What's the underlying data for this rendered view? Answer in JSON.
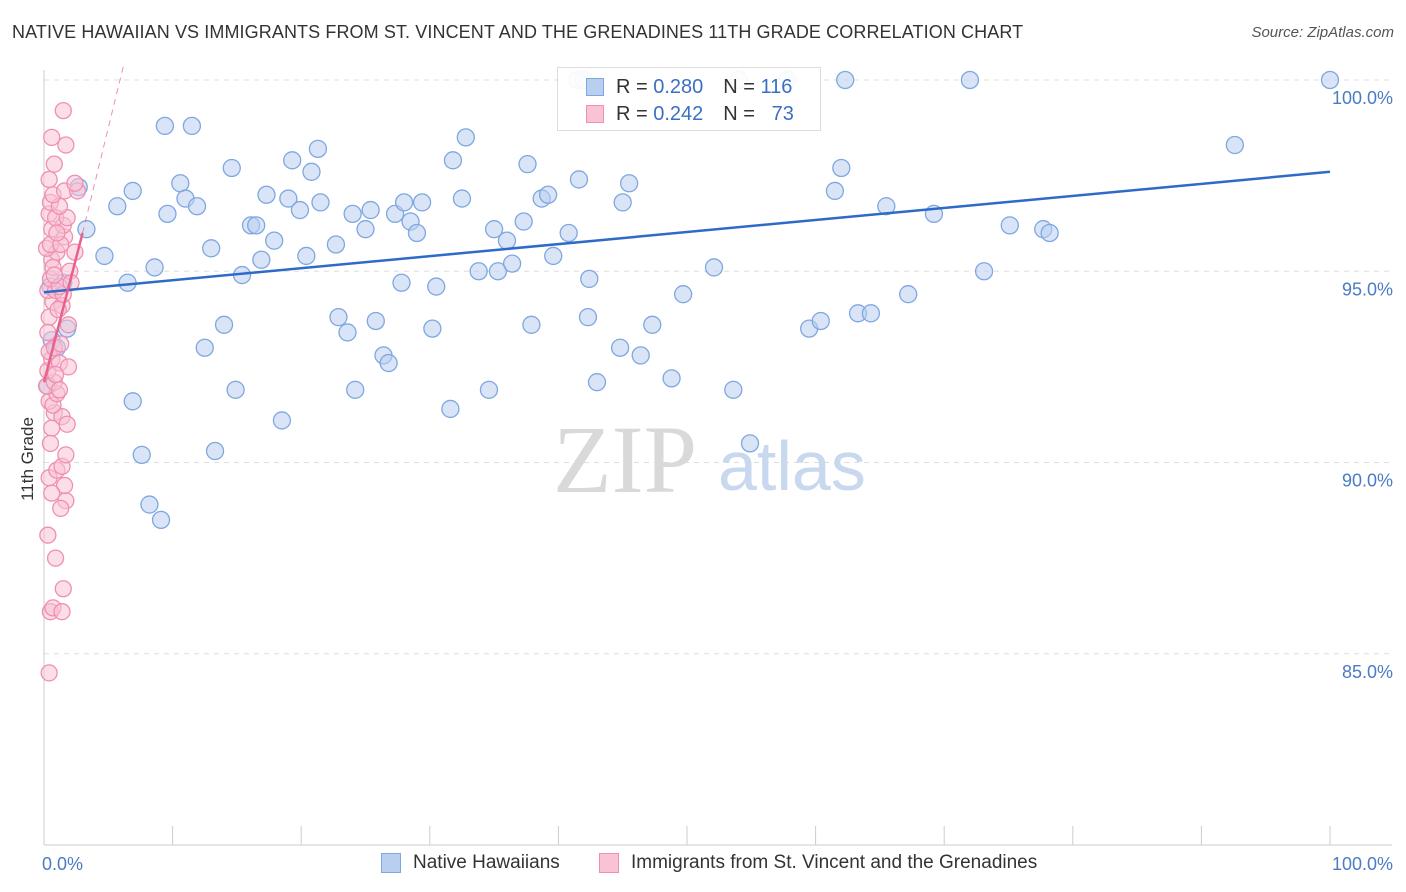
{
  "title": "NATIVE HAWAIIAN VS IMMIGRANTS FROM ST. VINCENT AND THE GRENADINES 11TH GRADE CORRELATION CHART",
  "source": "Source: ZipAtlas.com",
  "watermark": {
    "zip": "ZIP",
    "atlas": "atlas"
  },
  "legend": {
    "rows": [
      {
        "r_label": "R =",
        "r_value": "0.280",
        "n_label": "N =",
        "n_value": "116"
      },
      {
        "r_label": "R =",
        "r_value": "0.242",
        "n_label": "N =",
        "n_value": "73"
      }
    ]
  },
  "bottom_legend": [
    "Native Hawaiians",
    "Immigrants from St. Vincent and the Grenadines"
  ],
  "colors": {
    "blue": "#7fa7e0",
    "blue_fill": "#b9cff0",
    "blue_line": "#2e6bc9",
    "pink": "#f08fb0",
    "pink_fill": "#f7c3d5",
    "pink_line": "#e8608c",
    "grid": "#dddddd",
    "axis_text": "#4a7cc4"
  },
  "chart_data": {
    "type": "scatter",
    "title": "NATIVE HAWAIIAN VS IMMIGRANTS FROM ST. VINCENT AND THE GRENADINES 11TH GRADE CORRELATION CHART",
    "xlabel": "",
    "ylabel": "11th Grade",
    "xlim": [
      0,
      100
    ],
    "ylim": [
      80.5,
      100.6
    ],
    "x_tick_labels": [
      "0.0%",
      "100.0%"
    ],
    "y_ticks": [
      85,
      90,
      95,
      100
    ],
    "y_tick_labels": [
      "85.0%",
      "90.0%",
      "95.0%",
      "100.0%"
    ],
    "grid": true,
    "legend_position": "top-center",
    "series": [
      {
        "name": "Native Hawaiians",
        "color": "#7fa7e0",
        "R": 0.28,
        "N": 116,
        "trend": {
          "x": [
            0,
            100
          ],
          "y": [
            94.45,
            97.6
          ],
          "style": "solid"
        },
        "points": [
          [
            0.3,
            92.0
          ],
          [
            0.6,
            93.2
          ],
          [
            1.0,
            93.0
          ],
          [
            0.5,
            94.6
          ],
          [
            1.5,
            94.7
          ],
          [
            1.8,
            93.5
          ],
          [
            2.7,
            97.2
          ],
          [
            3.3,
            96.1
          ],
          [
            4.7,
            95.4
          ],
          [
            5.7,
            96.7
          ],
          [
            6.5,
            94.7
          ],
          [
            6.9,
            91.6
          ],
          [
            6.9,
            97.1
          ],
          [
            7.6,
            90.2
          ],
          [
            8.2,
            88.9
          ],
          [
            8.6,
            95.1
          ],
          [
            9.1,
            88.5
          ],
          [
            9.4,
            98.8
          ],
          [
            9.6,
            96.5
          ],
          [
            10.6,
            97.3
          ],
          [
            11.0,
            96.9
          ],
          [
            11.5,
            98.8
          ],
          [
            11.9,
            96.7
          ],
          [
            12.5,
            93.0
          ],
          [
            13.0,
            95.6
          ],
          [
            13.3,
            90.3
          ],
          [
            14.0,
            93.6
          ],
          [
            14.6,
            97.7
          ],
          [
            14.9,
            91.9
          ],
          [
            15.4,
            94.9
          ],
          [
            16.1,
            96.2
          ],
          [
            16.5,
            96.2
          ],
          [
            16.9,
            95.3
          ],
          [
            17.3,
            97.0
          ],
          [
            17.9,
            95.8
          ],
          [
            18.5,
            91.1
          ],
          [
            19.0,
            96.9
          ],
          [
            19.3,
            97.9
          ],
          [
            19.9,
            96.6
          ],
          [
            20.4,
            95.4
          ],
          [
            20.8,
            97.6
          ],
          [
            21.3,
            98.2
          ],
          [
            21.5,
            96.8
          ],
          [
            22.7,
            95.7
          ],
          [
            22.9,
            93.8
          ],
          [
            23.6,
            93.4
          ],
          [
            24.0,
            96.5
          ],
          [
            24.2,
            91.9
          ],
          [
            25.0,
            96.1
          ],
          [
            25.4,
            96.6
          ],
          [
            25.8,
            93.7
          ],
          [
            26.4,
            92.8
          ],
          [
            26.8,
            92.6
          ],
          [
            27.3,
            96.5
          ],
          [
            27.8,
            94.7
          ],
          [
            28.0,
            96.8
          ],
          [
            28.5,
            96.3
          ],
          [
            29.0,
            96.0
          ],
          [
            29.4,
            96.8
          ],
          [
            30.2,
            93.5
          ],
          [
            30.5,
            94.6
          ],
          [
            31.6,
            91.4
          ],
          [
            31.8,
            97.9
          ],
          [
            32.5,
            96.9
          ],
          [
            32.8,
            98.5
          ],
          [
            33.8,
            95.0
          ],
          [
            34.6,
            91.9
          ],
          [
            35.0,
            96.1
          ],
          [
            35.3,
            95.0
          ],
          [
            36.0,
            95.8
          ],
          [
            36.4,
            95.2
          ],
          [
            37.3,
            96.3
          ],
          [
            37.6,
            97.8
          ],
          [
            37.9,
            93.6
          ],
          [
            38.7,
            96.9
          ],
          [
            39.2,
            97.0
          ],
          [
            39.6,
            95.4
          ],
          [
            40.8,
            96.0
          ],
          [
            41.6,
            97.4
          ],
          [
            42.3,
            93.8
          ],
          [
            42.4,
            94.8
          ],
          [
            43.0,
            92.1
          ],
          [
            44.8,
            93.0
          ],
          [
            45.0,
            96.8
          ],
          [
            45.5,
            97.3
          ],
          [
            46.4,
            92.8
          ],
          [
            47.3,
            93.6
          ],
          [
            48.8,
            92.2
          ],
          [
            49.7,
            94.4
          ],
          [
            52.1,
            95.1
          ],
          [
            53.6,
            91.9
          ],
          [
            54.9,
            90.5
          ],
          [
            59.5,
            93.5
          ],
          [
            60.4,
            93.7
          ],
          [
            61.5,
            97.1
          ],
          [
            62.0,
            97.7
          ],
          [
            63.3,
            93.9
          ],
          [
            64.3,
            93.9
          ],
          [
            65.5,
            96.7
          ],
          [
            67.2,
            94.4
          ],
          [
            69.2,
            96.5
          ],
          [
            73.1,
            95.0
          ],
          [
            75.1,
            96.2
          ],
          [
            77.7,
            96.1
          ],
          [
            78.2,
            96.0
          ],
          [
            100.0,
            100.0
          ],
          [
            92.6,
            98.3
          ],
          [
            62.3,
            100.0
          ],
          [
            72.0,
            100.0
          ],
          [
            54.0,
            100.0
          ],
          [
            57.8,
            100.0
          ],
          [
            41.5,
            100.0
          ],
          [
            42.0,
            100.0
          ]
        ]
      },
      {
        "name": "Immigrants from St. Vincent and the Grenadines",
        "color": "#f08fb0",
        "R": 0.242,
        "N": 73,
        "trend": {
          "x": [
            0,
            3.0
          ],
          "y": [
            92.1,
            96.0
          ],
          "style": "solid",
          "extension": {
            "x": [
              3.0,
              6.2
            ],
            "y": [
              96.0,
              100.4
            ],
            "style": "dashed"
          }
        },
        "points": [
          [
            0.4,
            84.5
          ],
          [
            0.5,
            86.1
          ],
          [
            0.7,
            86.2
          ],
          [
            1.4,
            86.1
          ],
          [
            1.5,
            86.7
          ],
          [
            0.9,
            87.5
          ],
          [
            0.3,
            88.1
          ],
          [
            1.7,
            89.0
          ],
          [
            0.4,
            89.6
          ],
          [
            1.6,
            89.4
          ],
          [
            1.0,
            89.8
          ],
          [
            1.4,
            89.9
          ],
          [
            1.7,
            90.2
          ],
          [
            0.6,
            90.9
          ],
          [
            0.8,
            91.3
          ],
          [
            1.4,
            91.2
          ],
          [
            0.4,
            91.6
          ],
          [
            0.7,
            91.5
          ],
          [
            1.0,
            91.8
          ],
          [
            0.2,
            92.0
          ],
          [
            0.8,
            92.1
          ],
          [
            0.3,
            92.4
          ],
          [
            0.6,
            92.7
          ],
          [
            1.2,
            92.6
          ],
          [
            1.9,
            92.5
          ],
          [
            0.4,
            92.9
          ],
          [
            0.8,
            93.0
          ],
          [
            1.3,
            93.1
          ],
          [
            0.4,
            93.8
          ],
          [
            0.7,
            94.2
          ],
          [
            1.4,
            94.1
          ],
          [
            0.3,
            94.5
          ],
          [
            0.9,
            94.5
          ],
          [
            1.5,
            94.4
          ],
          [
            0.5,
            94.8
          ],
          [
            1.2,
            94.6
          ],
          [
            0.6,
            95.3
          ],
          [
            1.0,
            95.5
          ],
          [
            2.4,
            95.5
          ],
          [
            0.2,
            95.6
          ],
          [
            0.5,
            95.7
          ],
          [
            1.6,
            95.9
          ],
          [
            1.3,
            95.7
          ],
          [
            0.6,
            96.1
          ],
          [
            1.5,
            96.2
          ],
          [
            0.4,
            96.5
          ],
          [
            0.9,
            96.4
          ],
          [
            1.8,
            96.4
          ],
          [
            0.5,
            96.8
          ],
          [
            1.2,
            96.7
          ],
          [
            0.7,
            97.0
          ],
          [
            1.6,
            97.1
          ],
          [
            2.6,
            97.1
          ],
          [
            2.4,
            97.3
          ],
          [
            0.8,
            97.8
          ],
          [
            1.7,
            98.3
          ],
          [
            0.6,
            98.5
          ],
          [
            1.5,
            99.2
          ],
          [
            0.3,
            93.4
          ],
          [
            1.1,
            94.0
          ],
          [
            2.0,
            95.0
          ],
          [
            0.9,
            92.3
          ],
          [
            1.8,
            91.0
          ],
          [
            0.5,
            90.5
          ],
          [
            1.3,
            88.8
          ],
          [
            0.7,
            95.1
          ],
          [
            1.0,
            96.0
          ],
          [
            2.1,
            94.7
          ],
          [
            0.4,
            97.4
          ],
          [
            1.9,
            93.6
          ],
          [
            0.6,
            89.2
          ],
          [
            1.2,
            91.9
          ],
          [
            0.8,
            94.9
          ]
        ]
      }
    ]
  }
}
